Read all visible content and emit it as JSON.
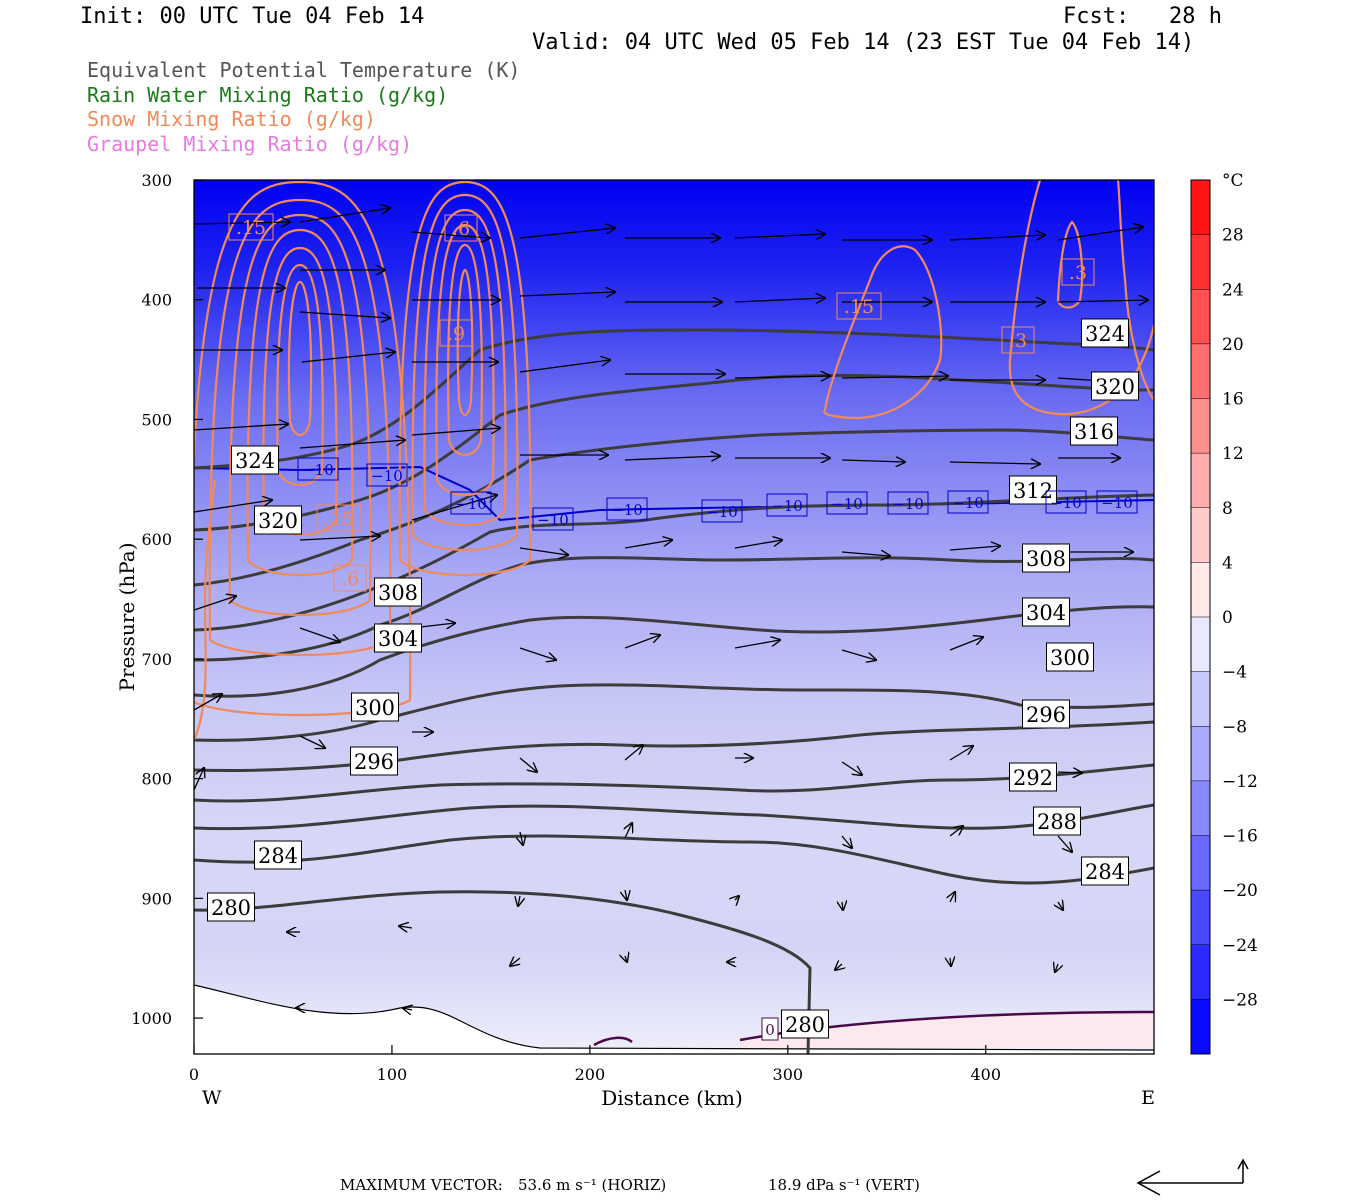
{
  "header": {
    "init": "Init: 00 UTC Tue 04 Feb 14",
    "fcst": "Fcst:   28 h",
    "valid": "Valid: 04 UTC Wed 05 Feb 14 (23 EST Tue 04 Feb 14)"
  },
  "legend": [
    {
      "text": "Equivalent Potential Temperature (K)",
      "color": "#555555"
    },
    {
      "text": "Rain Water Mixing Ratio (g/kg)",
      "color": "#1a7a1a"
    },
    {
      "text": "Snow Mixing Ratio (g/kg)",
      "color": "#f08a5a"
    },
    {
      "text": "Graupel Mixing Ratio (g/kg)",
      "color": "#e77be0"
    }
  ],
  "chart_data": {
    "type": "heatmap",
    "xlabel": "Distance (km)",
    "ylabel": "Pressure (hPa)",
    "x_ticks": [
      "0",
      "100",
      "200",
      "300",
      "400"
    ],
    "y_ticks": [
      "300",
      "400",
      "500",
      "600",
      "700",
      "800",
      "900",
      "1000"
    ],
    "xlim": [
      0,
      485
    ],
    "ylim": [
      1030,
      300
    ],
    "x_end_labels": {
      "left": "W",
      "right": "E"
    },
    "colorbar": {
      "unit": "°C",
      "ticks": [
        "28",
        "24",
        "20",
        "16",
        "12",
        "8",
        "4",
        "0",
        "−4",
        "−8",
        "−12",
        "−16",
        "−20",
        "−24",
        "−28"
      ],
      "range": [
        -32,
        32
      ],
      "step": 4
    },
    "theta_e_contours": [
      {
        "value": 280,
        "label": "280"
      },
      {
        "value": 284,
        "label": "284"
      },
      {
        "value": 288,
        "label": "288"
      },
      {
        "value": 292,
        "label": "292"
      },
      {
        "value": 296,
        "label": "296"
      },
      {
        "value": 300,
        "label": "300"
      },
      {
        "value": 304,
        "label": "304"
      },
      {
        "value": 308,
        "label": "308"
      },
      {
        "value": 312,
        "label": "312"
      },
      {
        "value": 316,
        "label": "316"
      },
      {
        "value": 320,
        "label": "320"
      },
      {
        "value": 324,
        "label": "324"
      }
    ],
    "isotherm_labels": [
      "−10",
      "0"
    ],
    "snow_labels": [
      ".15",
      ".6",
      ".9",
      ".3",
      ".15",
      ".3",
      ".15",
      ".6"
    ],
    "colors": {
      "cold": "#0000ff",
      "warm": "#ff0000",
      "theta_e": "#3c3c3c",
      "snow": "#f08a5a",
      "isotherm": "#0000cc",
      "zero_line": "#4a0a4a"
    }
  },
  "footer": {
    "max_vector": "MAXIMUM VECTOR:",
    "horiz": "53.6 m s⁻¹ (HORIZ)",
    "vert": "18.9 dPa s⁻¹ (VERT)"
  }
}
